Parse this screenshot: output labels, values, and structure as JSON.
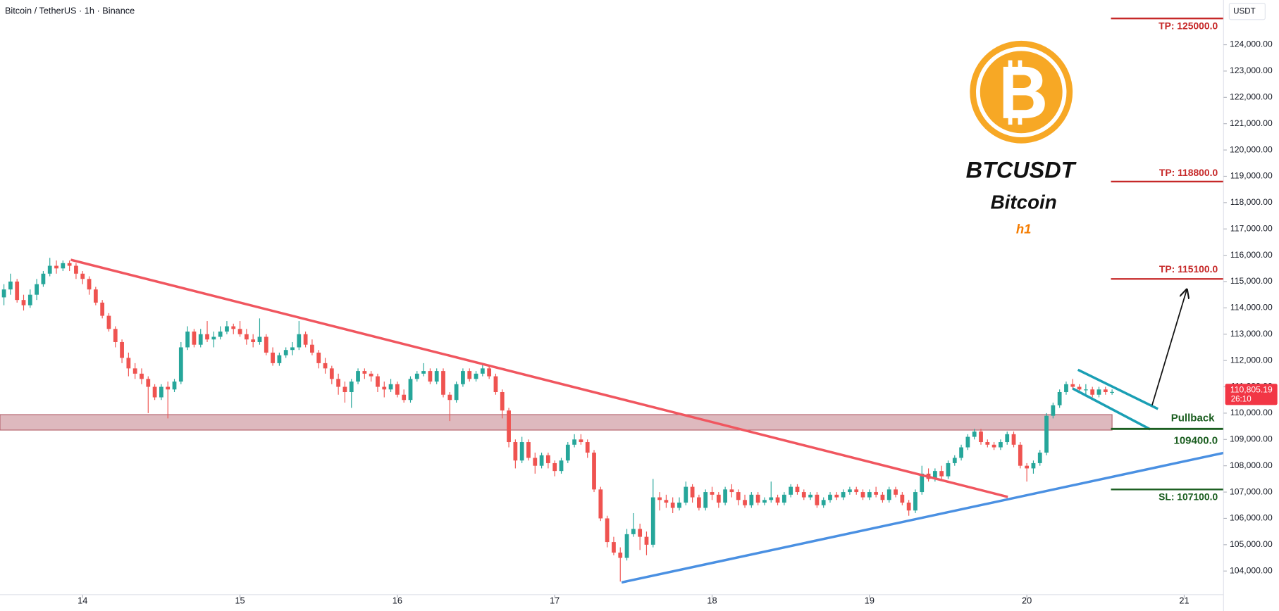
{
  "header": "Bitcoin / TetherUS · 1h · Binance",
  "chart_data": {
    "type": "candlestick",
    "title": "BTCUSDT",
    "subtitle": "Bitcoin",
    "timeframe": "h1",
    "up_color": "#26a69a",
    "down_color": "#ef5350",
    "candles": [
      [
        114400,
        114900,
        114100,
        114700
      ],
      [
        114700,
        115300,
        114500,
        115000
      ],
      [
        115000,
        115100,
        114200,
        114300
      ],
      [
        114300,
        114500,
        113900,
        114100
      ],
      [
        114100,
        114700,
        114000,
        114500
      ],
      [
        114500,
        115100,
        114300,
        114900
      ],
      [
        114900,
        115400,
        114800,
        115300
      ],
      [
        115300,
        115900,
        115200,
        115600
      ],
      [
        115600,
        115800,
        115300,
        115500
      ],
      [
        115500,
        115800,
        115400,
        115700
      ],
      [
        115700,
        115800,
        115400,
        115600
      ],
      [
        115600,
        115700,
        115100,
        115300
      ],
      [
        115300,
        115400,
        114900,
        115100
      ],
      [
        115100,
        115200,
        114500,
        114700
      ],
      [
        114700,
        114800,
        114100,
        114200
      ],
      [
        114200,
        114300,
        113600,
        113700
      ],
      [
        113700,
        113800,
        113100,
        113200
      ],
      [
        113200,
        113300,
        112500,
        112700
      ],
      [
        112700,
        112800,
        111900,
        112100
      ],
      [
        112100,
        112300,
        111400,
        111700
      ],
      [
        111700,
        111900,
        111300,
        111500
      ],
      [
        111500,
        111700,
        111100,
        111300
      ],
      [
        111300,
        111400,
        110000,
        111000
      ],
      [
        111000,
        111100,
        110500,
        110600
      ],
      [
        110600,
        111100,
        110500,
        111000
      ],
      [
        111000,
        111200,
        109800,
        110900
      ],
      [
        110900,
        111300,
        110800,
        111200
      ],
      [
        111200,
        112700,
        111100,
        112500
      ],
      [
        112500,
        113300,
        112400,
        113100
      ],
      [
        113100,
        113200,
        112500,
        112600
      ],
      [
        112600,
        113200,
        112500,
        113000
      ],
      [
        113000,
        113500,
        112700,
        112800
      ],
      [
        112800,
        113100,
        112500,
        112900
      ],
      [
        112900,
        113300,
        112800,
        113100
      ],
      [
        113100,
        113500,
        113000,
        113300
      ],
      [
        113300,
        113400,
        113000,
        113200
      ],
      [
        113200,
        113500,
        112900,
        113000
      ],
      [
        113000,
        113200,
        112600,
        112800
      ],
      [
        112800,
        113000,
        112500,
        112700
      ],
      [
        112700,
        113600,
        112600,
        112900
      ],
      [
        112900,
        113000,
        112200,
        112300
      ],
      [
        112300,
        112500,
        111800,
        111900
      ],
      [
        111900,
        112300,
        111800,
        112200
      ],
      [
        112200,
        112500,
        112100,
        112400
      ],
      [
        112400,
        112700,
        112200,
        112500
      ],
      [
        112500,
        113500,
        112400,
        113000
      ],
      [
        113000,
        113100,
        112500,
        112600
      ],
      [
        112600,
        112800,
        112200,
        112300
      ],
      [
        112300,
        112400,
        111700,
        111900
      ],
      [
        111900,
        112100,
        111500,
        111700
      ],
      [
        111700,
        111800,
        111100,
        111300
      ],
      [
        111300,
        111500,
        110700,
        111000
      ],
      [
        111000,
        111200,
        110400,
        110800
      ],
      [
        110800,
        111300,
        110200,
        111200
      ],
      [
        111200,
        111700,
        111100,
        111600
      ],
      [
        111600,
        111700,
        111300,
        111500
      ],
      [
        111500,
        111600,
        111200,
        111400
      ],
      [
        111400,
        111500,
        110800,
        111000
      ],
      [
        111000,
        111200,
        110600,
        110900
      ],
      [
        110900,
        111300,
        110800,
        111100
      ],
      [
        111100,
        111200,
        110600,
        110700
      ],
      [
        110700,
        110900,
        110400,
        110500
      ],
      [
        110500,
        111400,
        110400,
        111300
      ],
      [
        111300,
        111600,
        111200,
        111500
      ],
      [
        111500,
        111900,
        111400,
        111600
      ],
      [
        111600,
        111700,
        111100,
        111200
      ],
      [
        111200,
        111700,
        111100,
        111600
      ],
      [
        111600,
        111700,
        110600,
        110700
      ],
      [
        110700,
        110800,
        109700,
        110500
      ],
      [
        110500,
        111200,
        110400,
        111100
      ],
      [
        111100,
        111700,
        111000,
        111600
      ],
      [
        111600,
        111700,
        111200,
        111300
      ],
      [
        111300,
        111600,
        111200,
        111500
      ],
      [
        111500,
        111900,
        111400,
        111700
      ],
      [
        111700,
        111800,
        111300,
        111400
      ],
      [
        111400,
        111500,
        110700,
        110800
      ],
      [
        110800,
        110900,
        109800,
        110100
      ],
      [
        110100,
        110200,
        108700,
        108900
      ],
      [
        108900,
        109000,
        107900,
        108200
      ],
      [
        108200,
        109100,
        108100,
        108900
      ],
      [
        108900,
        109000,
        108200,
        108300
      ],
      [
        108300,
        108500,
        107700,
        108000
      ],
      [
        108000,
        108500,
        107900,
        108400
      ],
      [
        108400,
        108500,
        107900,
        108100
      ],
      [
        108100,
        108200,
        107600,
        107800
      ],
      [
        107800,
        108300,
        107700,
        108200
      ],
      [
        108200,
        108900,
        108100,
        108800
      ],
      [
        108800,
        109200,
        108700,
        109000
      ],
      [
        109000,
        109200,
        108800,
        108900
      ],
      [
        108900,
        109000,
        108300,
        108500
      ],
      [
        108500,
        108600,
        107000,
        107100
      ],
      [
        107100,
        107200,
        105900,
        106000
      ],
      [
        106000,
        106100,
        104900,
        105100
      ],
      [
        105100,
        105300,
        104600,
        104700
      ],
      [
        104700,
        104900,
        103600,
        104500
      ],
      [
        104500,
        105600,
        104400,
        105400
      ],
      [
        105400,
        106200,
        105300,
        105600
      ],
      [
        105600,
        105800,
        104800,
        105300
      ],
      [
        105300,
        105500,
        104600,
        105000
      ],
      [
        105000,
        107500,
        104900,
        106800
      ],
      [
        106800,
        107000,
        106300,
        106700
      ],
      [
        106700,
        106900,
        106400,
        106600
      ],
      [
        106600,
        106800,
        106200,
        106400
      ],
      [
        106400,
        106800,
        106300,
        106600
      ],
      [
        106600,
        107400,
        106500,
        107200
      ],
      [
        107200,
        107300,
        106600,
        106800
      ],
      [
        106800,
        106900,
        106300,
        106400
      ],
      [
        106400,
        107100,
        106300,
        107000
      ],
      [
        107000,
        107200,
        106700,
        106900
      ],
      [
        106900,
        107000,
        106400,
        106600
      ],
      [
        106600,
        107200,
        106500,
        107100
      ],
      [
        107100,
        107300,
        106800,
        107000
      ],
      [
        107000,
        107100,
        106500,
        106700
      ],
      [
        106700,
        106900,
        106400,
        106500
      ],
      [
        106500,
        107000,
        106400,
        106900
      ],
      [
        106900,
        107000,
        106500,
        106600
      ],
      [
        106600,
        106800,
        106500,
        106700
      ],
      [
        106700,
        107400,
        106600,
        106800
      ],
      [
        106800,
        106900,
        106500,
        106600
      ],
      [
        106600,
        107000,
        106500,
        106900
      ],
      [
        106900,
        107300,
        106800,
        107200
      ],
      [
        107200,
        107300,
        106900,
        107000
      ],
      [
        107000,
        107100,
        106700,
        106800
      ],
      [
        106800,
        107000,
        106700,
        106900
      ],
      [
        106900,
        107000,
        106400,
        106500
      ],
      [
        106500,
        106800,
        106400,
        106700
      ],
      [
        106700,
        107000,
        106600,
        106900
      ],
      [
        106900,
        107000,
        106700,
        106800
      ],
      [
        106800,
        107100,
        106700,
        107000
      ],
      [
        107000,
        107200,
        106900,
        107100
      ],
      [
        107100,
        107200,
        106900,
        107000
      ],
      [
        107000,
        107100,
        106700,
        106800
      ],
      [
        106800,
        107100,
        106700,
        107000
      ],
      [
        107000,
        107200,
        106800,
        106900
      ],
      [
        106900,
        107000,
        106600,
        106700
      ],
      [
        106700,
        107200,
        106600,
        107100
      ],
      [
        107100,
        107200,
        106800,
        106900
      ],
      [
        106900,
        107000,
        106500,
        106600
      ],
      [
        106600,
        106700,
        106100,
        106300
      ],
      [
        106300,
        107100,
        106200,
        107000
      ],
      [
        107000,
        108000,
        106900,
        107700
      ],
      [
        107700,
        107900,
        107400,
        107500
      ],
      [
        107500,
        107900,
        107400,
        107800
      ],
      [
        107800,
        108000,
        107500,
        107600
      ],
      [
        107600,
        108200,
        107500,
        108100
      ],
      [
        108100,
        108400,
        108000,
        108300
      ],
      [
        108300,
        108800,
        108200,
        108700
      ],
      [
        108700,
        109200,
        108600,
        109100
      ],
      [
        109100,
        109400,
        109000,
        109300
      ],
      [
        109300,
        109400,
        108800,
        108900
      ],
      [
        108900,
        109000,
        108700,
        108800
      ],
      [
        108800,
        108900,
        108600,
        108700
      ],
      [
        108700,
        109000,
        108600,
        108900
      ],
      [
        108900,
        109300,
        108800,
        109200
      ],
      [
        109200,
        109300,
        108700,
        108800
      ],
      [
        108800,
        108900,
        107900,
        108000
      ],
      [
        108000,
        108100,
        107400,
        107900
      ],
      [
        107900,
        108200,
        107700,
        108100
      ],
      [
        108100,
        108600,
        108000,
        108500
      ],
      [
        108500,
        110000,
        108400,
        109900
      ],
      [
        109900,
        110400,
        109800,
        110300
      ],
      [
        110300,
        110900,
        110200,
        110800
      ],
      [
        110800,
        111200,
        110700,
        111100
      ],
      [
        111100,
        111300,
        110900,
        111000
      ],
      [
        111000,
        111100,
        110800,
        110900
      ],
      [
        110900,
        111100,
        110700,
        110900
      ],
      [
        110900,
        111000,
        110600,
        110700
      ],
      [
        110700,
        111000,
        110600,
        110900
      ],
      [
        110900,
        111000,
        110700,
        110800
      ],
      [
        110800,
        110900,
        110700,
        110805.19
      ]
    ],
    "xlim": [
      -0.6,
      186
    ],
    "xticks": [
      {
        "value": 12,
        "label": "14"
      },
      {
        "value": 36,
        "label": "15"
      },
      {
        "value": 60,
        "label": "16"
      },
      {
        "value": 84,
        "label": "17"
      },
      {
        "value": 108,
        "label": "18"
      },
      {
        "value": 132,
        "label": "19"
      },
      {
        "value": 156,
        "label": "20"
      },
      {
        "value": 180,
        "label": "21"
      }
    ],
    "ylim": [
      103100,
      125700
    ],
    "yticks": [
      {
        "value": 104000,
        "label": "104,000.00"
      },
      {
        "value": 105000,
        "label": "105,000.00"
      },
      {
        "value": 106000,
        "label": "106,000.00"
      },
      {
        "value": 107000,
        "label": "107,000.00"
      },
      {
        "value": 108000,
        "label": "108,000.00"
      },
      {
        "value": 109000,
        "label": "109,000.00"
      },
      {
        "value": 110000,
        "label": "110,000.00"
      },
      {
        "value": 111000,
        "label": "111,000.00"
      },
      {
        "value": 112000,
        "label": "112,000.00"
      },
      {
        "value": 113000,
        "label": "113,000.00"
      },
      {
        "value": 114000,
        "label": "114,000.00"
      },
      {
        "value": 115000,
        "label": "115,000.00"
      },
      {
        "value": 116000,
        "label": "116,000.00"
      },
      {
        "value": 117000,
        "label": "117,000.00"
      },
      {
        "value": 118000,
        "label": "118,000.00"
      },
      {
        "value": 119000,
        "label": "119,000.00"
      },
      {
        "value": 120000,
        "label": "120,000.00"
      },
      {
        "value": 121000,
        "label": "121,000.00"
      },
      {
        "value": 122000,
        "label": "122,000.00"
      },
      {
        "value": 123000,
        "label": "123,000.00"
      },
      {
        "value": 124000,
        "label": "124,000.00"
      }
    ],
    "y_axis_unit": "USDT",
    "last_price": {
      "value": 110805.19,
      "label": "110,805.19",
      "countdown": "26:10",
      "color": "#f23645"
    },
    "levels": [
      {
        "label": "TP: 125000.0",
        "value": 125000,
        "color": "#c62828"
      },
      {
        "label": "TP: 118800.0",
        "value": 118800,
        "color": "#c62828"
      },
      {
        "label": "TP: 115100.0",
        "value": 115100,
        "color": "#c62828"
      },
      {
        "label": "SL: 107100.0",
        "value": 107100,
        "color": "#1b5e20"
      }
    ],
    "pullback": {
      "label": "Pullback",
      "value": 109400,
      "value_label": "109400.0",
      "color": "#1b5e20"
    },
    "zone": {
      "xlim": [
        -0.6,
        169
      ],
      "ylim": [
        109356,
        109944
      ],
      "color": "#b5646e"
    },
    "trendlines": [
      {
        "x": [
          10.2,
          153.1
        ],
        "y": [
          115827,
          106817
        ],
        "color": "#f0565f"
      },
      {
        "x": [
          94.2,
          186
        ],
        "y": [
          103567,
          108489
        ],
        "color": "#4a90e2"
      },
      {
        "x": [
          163.8,
          176
        ],
        "y": [
          111647,
          110161
        ],
        "color": "#1a9fb4"
      },
      {
        "x": [
          163,
          174.8
        ],
        "y": [
          110935,
          109387
        ],
        "color": "#1a9fb4"
      }
    ],
    "arrow": {
      "x": [
        175.1,
        180.4
      ],
      "y": [
        110300,
        114700
      ],
      "color": "#111111"
    }
  }
}
